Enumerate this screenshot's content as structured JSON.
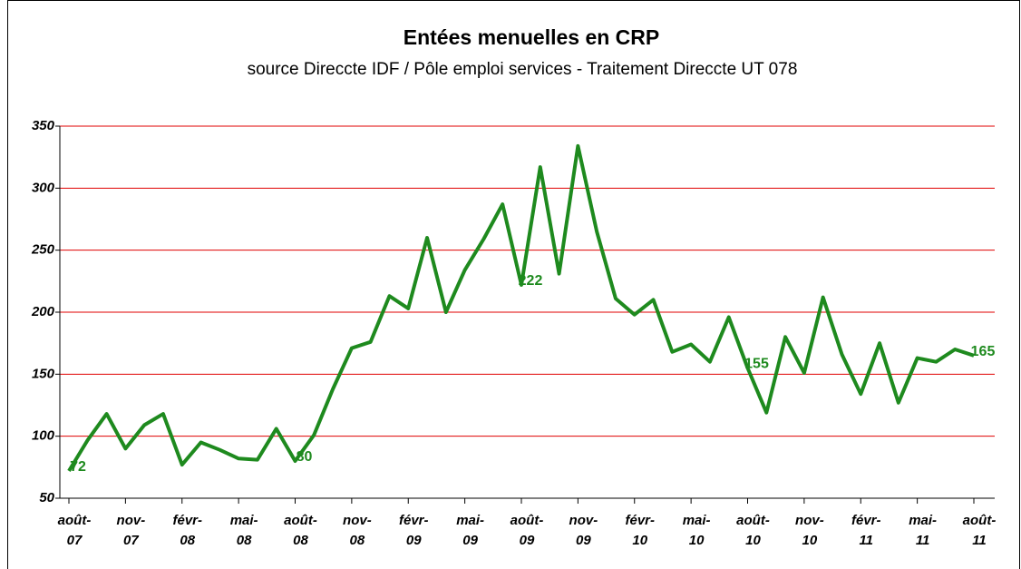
{
  "chart_data": {
    "type": "line",
    "title": "Entées menuelles en CRP",
    "subtitle": "source Direccte IDF / Pôle emploi services - Traitement Direccte UT 078",
    "categories": [
      "août-07",
      null,
      null,
      "nov-07",
      null,
      null,
      "févr-08",
      null,
      null,
      "mai-08",
      null,
      null,
      "août-08",
      null,
      null,
      "nov-08",
      null,
      null,
      "févr-09",
      null,
      null,
      "mai-09",
      null,
      null,
      "août-09",
      null,
      null,
      "nov-09",
      null,
      null,
      "févr-10",
      null,
      null,
      "mai-10",
      null,
      null,
      "août-10",
      null,
      null,
      "nov-10",
      null,
      null,
      "févr-11",
      null,
      null,
      "mai-11",
      null,
      null,
      "août-11"
    ],
    "series": [
      {
        "name": "CRP",
        "color": "#1e8a1e",
        "values": [
          72,
          97,
          118,
          90,
          109,
          118,
          77,
          95,
          89,
          82,
          81,
          106,
          80,
          101,
          138,
          171,
          176,
          213,
          203,
          260,
          200,
          234,
          259,
          287,
          222,
          317,
          231,
          334,
          265,
          211,
          198,
          210,
          168,
          174,
          160,
          196,
          155,
          119,
          180,
          151,
          212,
          166,
          134,
          175,
          127,
          163,
          160,
          170,
          165
        ],
        "value_labels": [
          "72",
          null,
          null,
          null,
          null,
          null,
          null,
          null,
          null,
          null,
          null,
          null,
          "80",
          null,
          null,
          null,
          null,
          null,
          null,
          null,
          null,
          null,
          null,
          null,
          "222",
          null,
          null,
          null,
          null,
          null,
          null,
          null,
          null,
          null,
          null,
          null,
          "155",
          null,
          null,
          null,
          null,
          null,
          null,
          null,
          null,
          null,
          null,
          null,
          "165"
        ]
      }
    ],
    "ylim": [
      50,
      350
    ],
    "yticks": [
      50,
      100,
      150,
      200,
      250,
      300,
      350
    ],
    "grid": true,
    "grid_color": "#e00000"
  }
}
